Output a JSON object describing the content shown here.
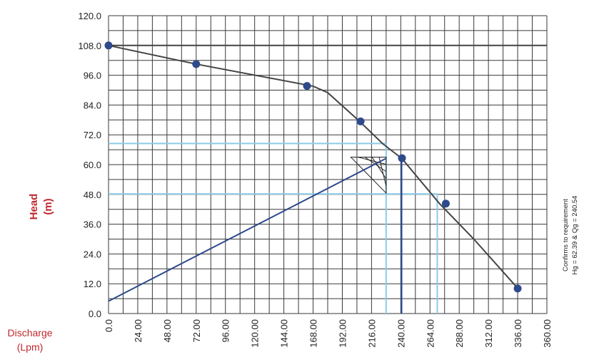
{
  "chart_data": {
    "type": "line",
    "ylabel_line1": "Head",
    "ylabel_line2": "(m)",
    "xlabel_line1": "Discharge",
    "xlabel_line2": "(Lpm)",
    "y_ticks": [
      "0.0",
      "12.0",
      "24.0",
      "36.0",
      "48.0",
      "60.0",
      "72.0",
      "84.0",
      "96.0",
      "108.0",
      "120.0"
    ],
    "x_ticks": [
      "0.0",
      "24.00",
      "48.00",
      "72.00",
      "96.00",
      "120.00",
      "144.00",
      "168.00",
      "192.00",
      "216.00",
      "240.00",
      "264.00",
      "288.00",
      "312.00",
      "336.00",
      "360.00"
    ],
    "xlim": [
      0,
      360
    ],
    "ylim": [
      0,
      120
    ],
    "grid": true,
    "curve": {
      "x": [
        0,
        72,
        168,
        180,
        206,
        225,
        241,
        272,
        300,
        336
      ],
      "y": [
        108,
        100.5,
        91.6,
        89,
        77.5,
        68.5,
        62.4,
        44.2,
        30,
        10.2
      ],
      "color": "#444444"
    },
    "points": {
      "x": [
        0,
        72,
        163,
        207,
        241,
        277,
        336
      ],
      "y": [
        108,
        100.5,
        91.7,
        77.4,
        62.6,
        44.3,
        10.1
      ],
      "color": "#2e4a8c"
    },
    "shutoff_line": {
      "y": 108,
      "color": "#444444"
    },
    "system_line": {
      "x": [
        0,
        228
      ],
      "y": [
        5,
        62.5
      ],
      "color": "#2e4a8c"
    },
    "duty_line": {
      "x": 240.54,
      "y": 62.39,
      "color": "#2e4a8c"
    },
    "guide_color": "#8ccbe8",
    "guides": [
      {
        "y": 68.5,
        "x_end": 228
      },
      {
        "y": 48.2,
        "x_end": 270
      },
      {
        "x": 228,
        "y_top": 68.5
      },
      {
        "x": 270,
        "y_top": 48.2
      }
    ],
    "hatch_triangle": {
      "x": [
        199,
        228,
        228
      ],
      "y": [
        63,
        63,
        48.5
      ]
    },
    "annotation_line1": "Confirms to requirement",
    "annotation_line2": "Hg = 62.39 & Qg = 240.54"
  }
}
